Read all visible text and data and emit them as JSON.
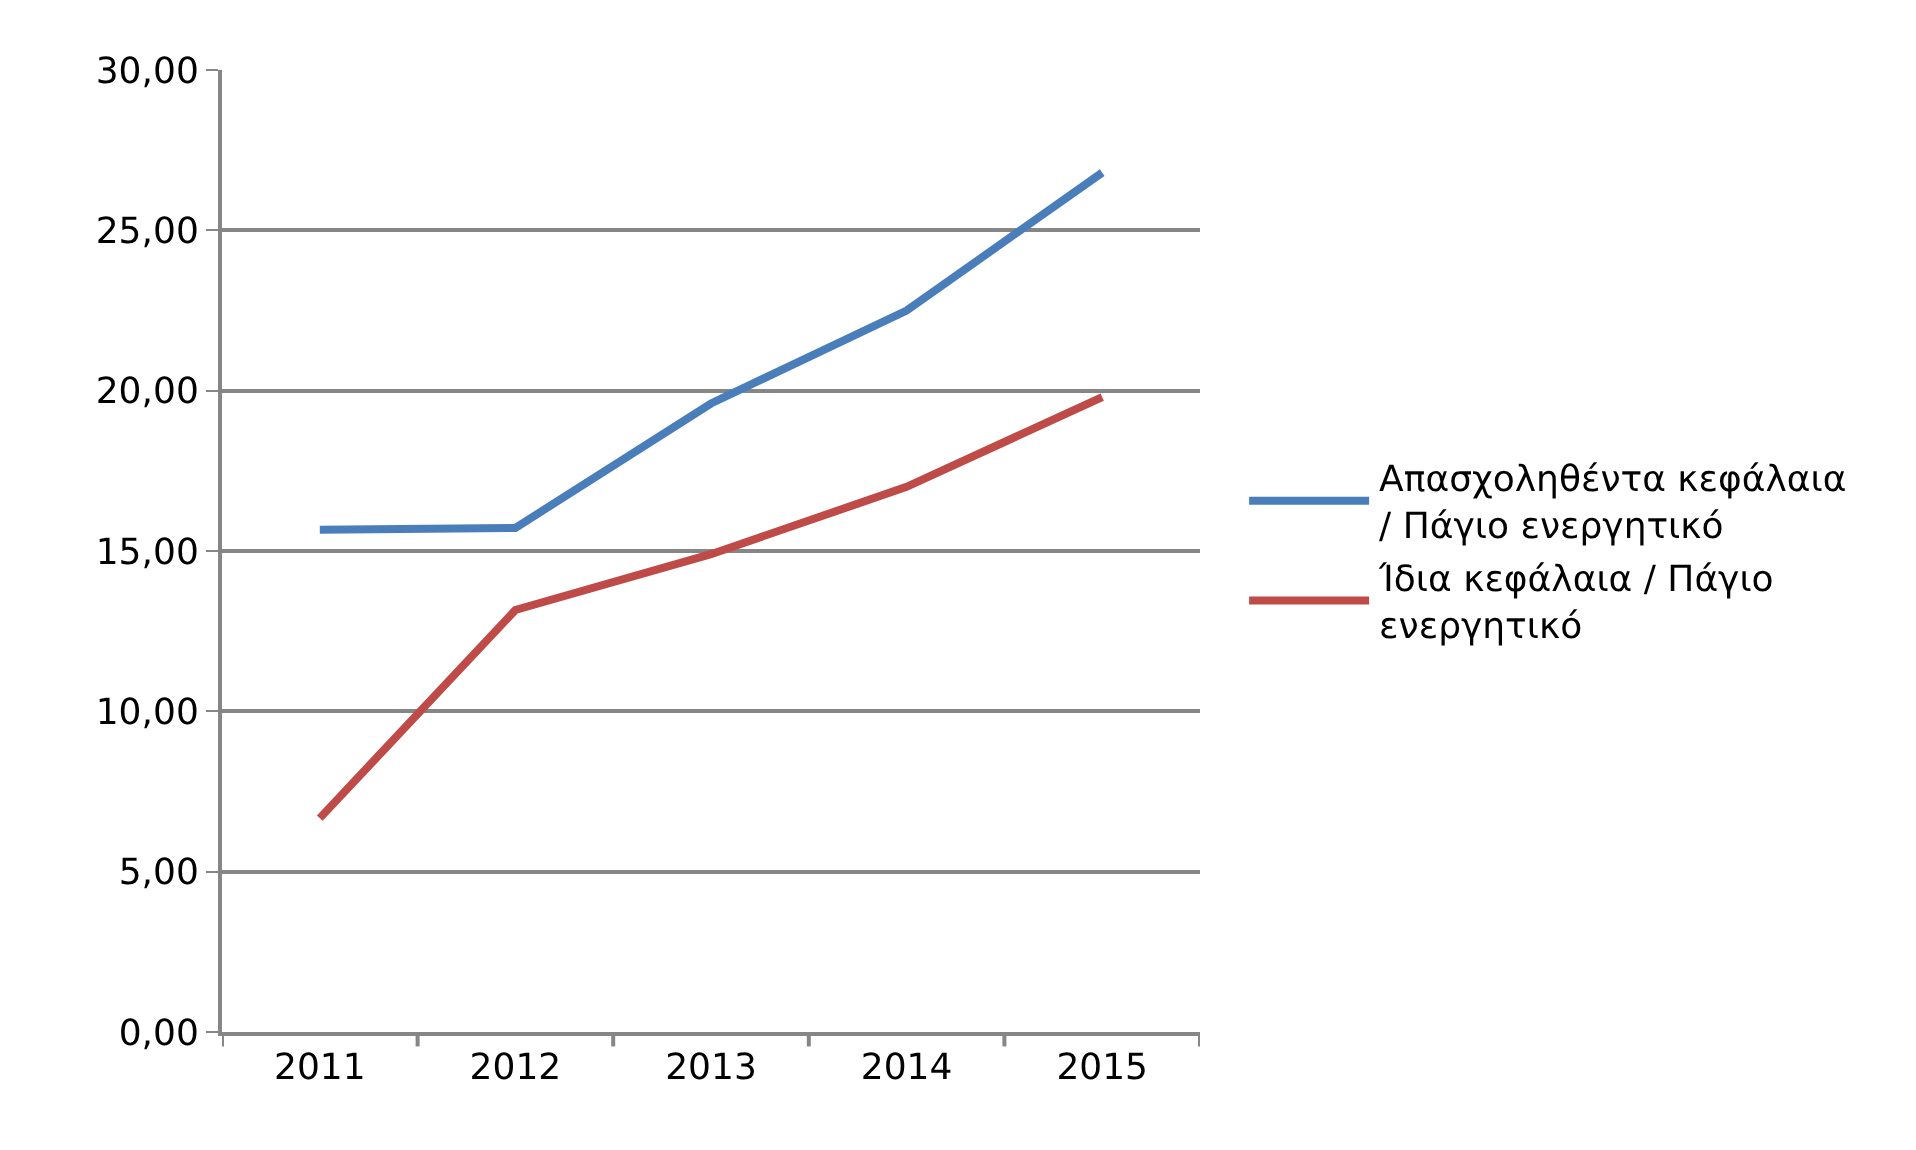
{
  "chart_data": {
    "type": "line",
    "categories": [
      "2011",
      "2012",
      "2013",
      "2014",
      "2015"
    ],
    "series": [
      {
        "name": "Απασχοληθέντα κεφάλαια / Πάγιο ενεργητικό",
        "color": "#4a7ebb",
        "values": [
          15.66,
          15.72,
          19.6,
          22.5,
          26.8
        ]
      },
      {
        "name": "Ίδια κεφάλαια / Πάγιο ενεργητικό",
        "color": "#be4b48",
        "values": [
          6.67,
          13.16,
          14.9,
          17.0,
          19.8
        ]
      }
    ],
    "ylim": [
      0,
      30
    ],
    "yticks": [
      {
        "value": 0,
        "label": "0,00"
      },
      {
        "value": 5,
        "label": "5,00"
      },
      {
        "value": 10,
        "label": "10,00"
      },
      {
        "value": 15,
        "label": "15,00"
      },
      {
        "value": 20,
        "label": "20,00"
      },
      {
        "value": 25,
        "label": "25,00"
      },
      {
        "value": 30,
        "label": "30,00"
      }
    ],
    "grid": "y",
    "legend": "right",
    "marker": "none",
    "line_style": "solid"
  }
}
